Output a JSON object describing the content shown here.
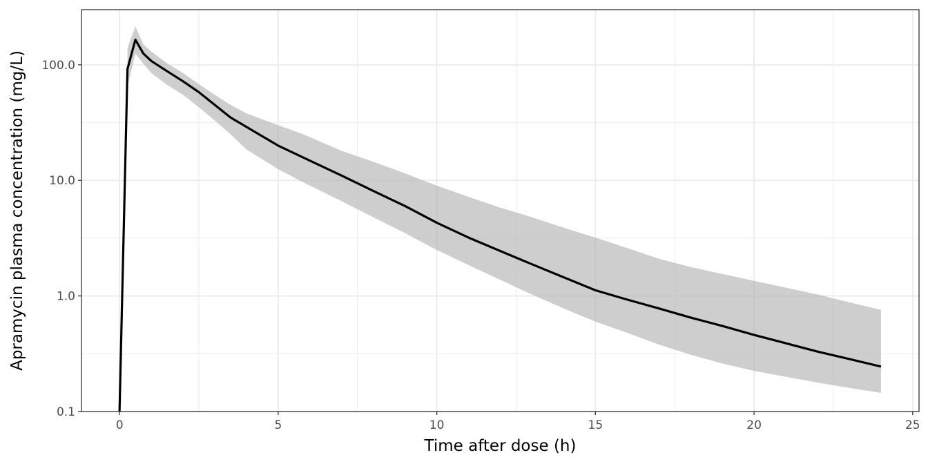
{
  "chart_data": {
    "type": "line",
    "xlabel": "Time after dose (h)",
    "ylabel": "Apramycin plasma concentration (mg/L)",
    "xlim": [
      -1.2,
      25.2
    ],
    "ylim": [
      0.1,
      300
    ],
    "y_scale": "log10",
    "x_ticks": [
      0,
      5,
      10,
      15,
      20,
      25
    ],
    "x_tick_labels": [
      "0",
      "5",
      "10",
      "15",
      "20",
      "25"
    ],
    "y_ticks": [
      0.1,
      1,
      10,
      100
    ],
    "y_tick_labels": [
      "0.1",
      "1.0",
      "10.0",
      "100.0"
    ],
    "grid": true,
    "colors": {
      "line": "#000000",
      "band": "#b3b3b3",
      "grid": "#ebebeb",
      "panel_border": "#333333"
    },
    "median": {
      "x": [
        0,
        0.25,
        0.5,
        0.75,
        1,
        1.5,
        2,
        2.5,
        3,
        3.5,
        4,
        5,
        6,
        7,
        8,
        9,
        10,
        11,
        12,
        13,
        14,
        15,
        16,
        17,
        18,
        19,
        20,
        21,
        22,
        23,
        24
      ],
      "y": [
        0.1,
        92,
        165,
        125,
        108,
        88,
        72,
        58,
        45,
        35,
        29,
        20,
        14.8,
        11.0,
        8.1,
        6.0,
        4.3,
        3.2,
        2.45,
        1.88,
        1.45,
        1.12,
        0.93,
        0.78,
        0.65,
        0.55,
        0.46,
        0.39,
        0.33,
        0.285,
        0.245
      ]
    },
    "band": {
      "x": [
        0.25,
        0.5,
        0.75,
        1,
        1.5,
        2,
        2.5,
        3,
        3.5,
        4,
        5,
        5.8,
        7,
        8,
        9,
        10,
        11,
        12,
        13,
        14,
        15,
        16,
        17,
        18,
        19,
        20,
        21,
        22,
        23,
        24
      ],
      "lower": [
        65,
        125,
        102,
        85,
        67,
        55,
        43,
        33,
        25,
        18.5,
        12.5,
        9.6,
        6.6,
        4.8,
        3.5,
        2.5,
        1.85,
        1.38,
        1.03,
        0.78,
        0.6,
        0.48,
        0.38,
        0.31,
        0.26,
        0.225,
        0.2,
        0.178,
        0.16,
        0.145
      ],
      "upper": [
        140,
        215,
        150,
        130,
        103,
        85,
        68,
        55,
        45,
        38,
        30,
        25,
        18,
        14.5,
        11.5,
        9.0,
        7.2,
        5.8,
        4.8,
        3.9,
        3.2,
        2.6,
        2.1,
        1.78,
        1.55,
        1.35,
        1.18,
        1.03,
        0.88,
        0.76
      ]
    }
  }
}
